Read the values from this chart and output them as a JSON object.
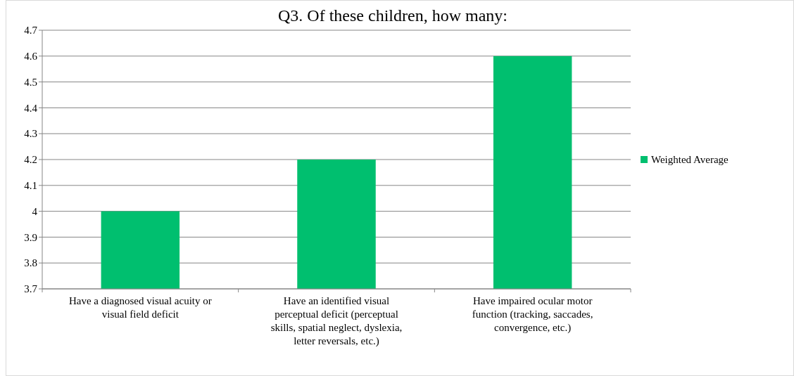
{
  "chart_data": {
    "type": "bar",
    "title": "Q3. Of these children, how many:",
    "categories": [
      "Have a diagnosed visual acuity or visual field deficit",
      "Have an identified visual perceptual deficit (perceptual skills, spatial neglect, dyslexia, letter reversals, etc.)",
      "Have impaired ocular motor function (tracking, saccades, convergence, etc.)"
    ],
    "series": [
      {
        "name": "Weighted Average",
        "color": "#00bf6f",
        "values": [
          4.0,
          4.2,
          4.6
        ]
      }
    ],
    "ylim": [
      3.7,
      4.7
    ],
    "yticks": [
      3.7,
      3.8,
      3.9,
      {
        "value": 4.0,
        "label": "4"
      },
      4.1,
      4.2,
      4.3,
      4.4,
      4.5,
      4.6,
      4.7
    ],
    "grid": "y",
    "legend": "right"
  }
}
